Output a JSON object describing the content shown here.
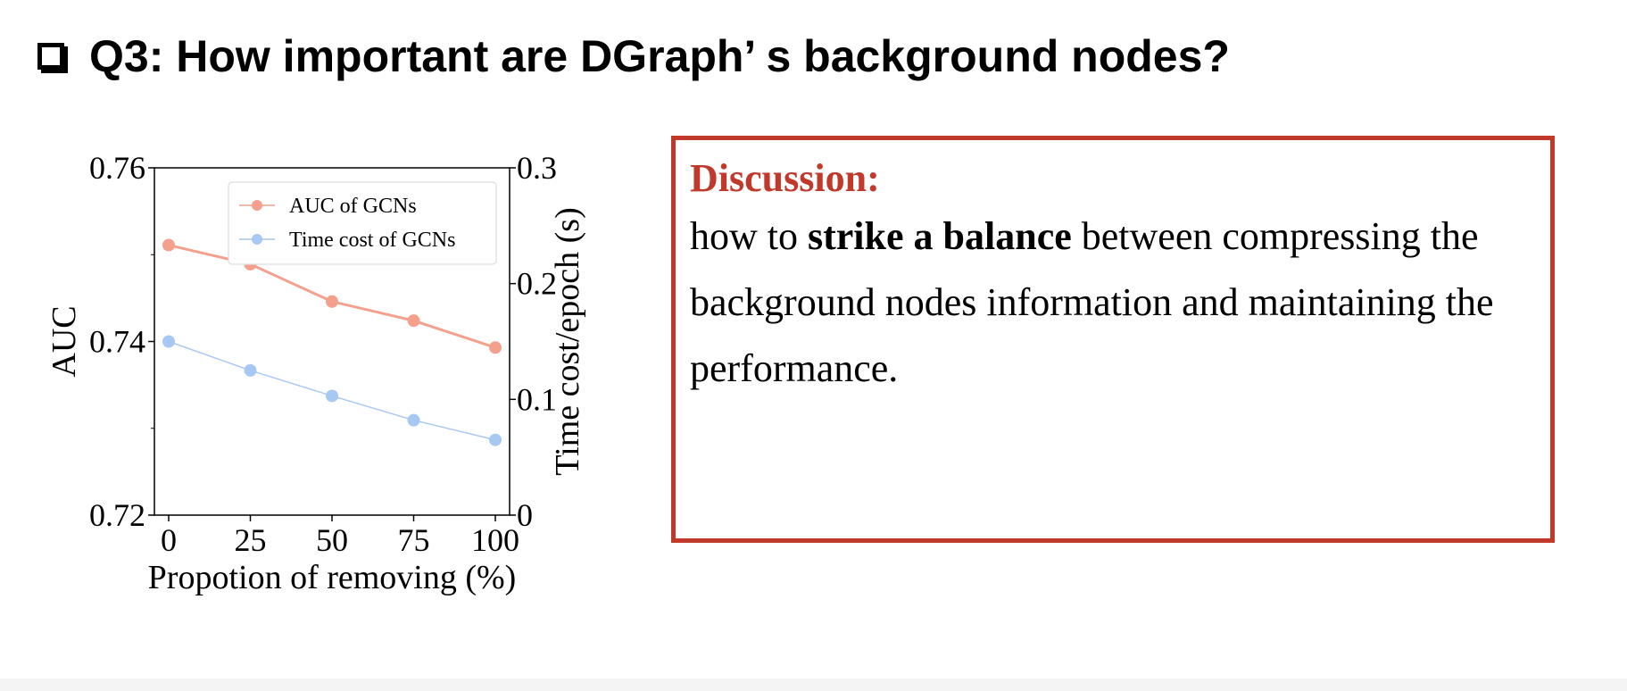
{
  "slide": {
    "title": "Q3: How important are DGraph’ s background nodes?"
  },
  "discussion": {
    "heading": "Discussion:",
    "body_segments": [
      "how to ",
      "strike a balance",
      " between compressing the background nodes information and maintaining the performance."
    ],
    "border_color": "#c0392b"
  },
  "chart_data": {
    "type": "line",
    "xlabel": "Propotion of removing (%)",
    "ylabel": "AUC",
    "y2label": "Time cost/epoch (s)",
    "x": [
      0,
      25,
      50,
      75,
      100
    ],
    "xticks": [
      "0",
      "25",
      "50",
      "75",
      "100"
    ],
    "ylim": [
      0.72,
      0.76
    ],
    "yticks": [
      "0.72",
      "0.74",
      "0.76"
    ],
    "y2lim": [
      0,
      0.3
    ],
    "y2ticks": [
      "0",
      "0.1",
      "0.2",
      "0.3"
    ],
    "legend_position": "top-right",
    "grid": false,
    "series": [
      {
        "name": "AUC of GCNs",
        "axis": "left",
        "color": "#f4a08c",
        "values": [
          0.7511,
          0.7489,
          0.7446,
          0.7424,
          0.7393
        ]
      },
      {
        "name": "Time cost of GCNs",
        "axis": "right",
        "color": "#a8c8f4",
        "values": [
          0.15,
          0.125,
          0.103,
          0.082,
          0.065
        ]
      }
    ]
  }
}
